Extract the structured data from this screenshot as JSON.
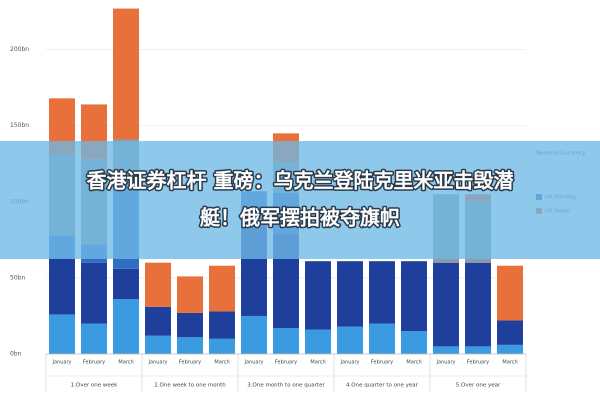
{
  "chart_data": {
    "type": "stacked-bar",
    "categories": [
      "January",
      "February",
      "March",
      "January",
      "February",
      "March",
      "January",
      "February",
      "March",
      "January",
      "February",
      "March",
      "January",
      "February",
      "March"
    ],
    "groups": [
      "1.Over one week",
      "2.One week to one month",
      "3.One month to one quarter",
      "4.One quarter to one year",
      "5.Over one year"
    ],
    "series": [
      {
        "color": "#3a9be0",
        "values": [
          26,
          20,
          36,
          12,
          11,
          10,
          25,
          17,
          16,
          18,
          20,
          15,
          5,
          5,
          6
        ]
      },
      {
        "color": "#1f3f9c",
        "values": [
          37,
          40,
          20,
          19,
          16,
          18,
          62,
          62,
          45,
          43,
          41,
          46,
          55,
          55,
          16
        ]
      },
      {
        "name": "UK Sterling",
        "color": "#2f6fc2",
        "values": [
          15,
          12,
          57,
          0,
          0,
          0,
          20,
          27,
          0,
          0,
          0,
          0,
          0,
          0,
          0
        ]
      },
      {
        "color": "#8c9ba6",
        "values": [
          53,
          56,
          28,
          0,
          0,
          0,
          0,
          20,
          0,
          0,
          0,
          0,
          45,
          40,
          0
        ]
      },
      {
        "name": "US Dollar",
        "color": "#e8703a",
        "values": [
          37,
          36,
          86,
          29,
          24,
          30,
          0,
          19,
          0,
          0,
          0,
          0,
          0,
          5,
          36
        ]
      }
    ],
    "legend_title": "Nominal Currency",
    "ylim": [
      0,
      230
    ],
    "yticks": [
      {
        "value": 0,
        "label": "0bn"
      },
      {
        "value": 50,
        "label": "50bn"
      },
      {
        "value": 100,
        "label": "100bn"
      },
      {
        "value": 150,
        "label": "150bn"
      },
      {
        "value": 200,
        "label": "200bn"
      }
    ],
    "grid": true
  },
  "headline": [
    "香港证券杠杆 重磅：乌克兰登陆克里米亚击毁潜",
    "艇！俄军摆拍被夺旗帜"
  ]
}
